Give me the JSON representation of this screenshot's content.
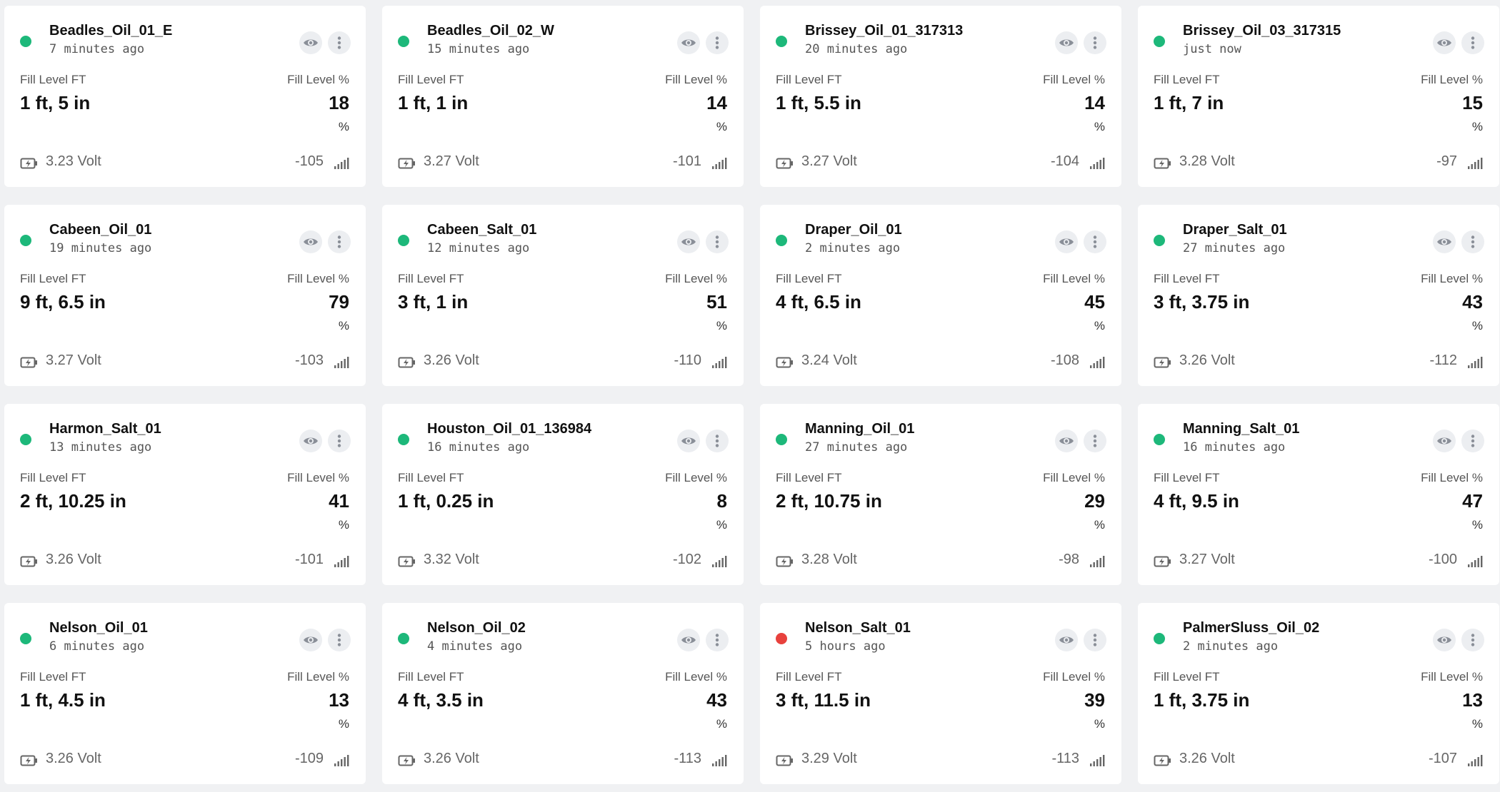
{
  "labels": {
    "fill_ft": "Fill Level FT",
    "fill_pct": "Fill Level %",
    "pct_sign": "%"
  },
  "colors": {
    "online": "#1db87a",
    "offline": "#e8413d"
  },
  "tanks": [
    {
      "name": "Beadles_Oil_01_E",
      "updated": "7 minutes ago",
      "status": "online",
      "fill_ft": "1 ft, 5 in",
      "fill_pct": "18",
      "voltage": "3.23 Volt",
      "rssi": "-105"
    },
    {
      "name": "Beadles_Oil_02_W",
      "updated": "15 minutes ago",
      "status": "online",
      "fill_ft": "1 ft, 1 in",
      "fill_pct": "14",
      "voltage": "3.27 Volt",
      "rssi": "-101"
    },
    {
      "name": "Brissey_Oil_01_317313",
      "updated": "20 minutes ago",
      "status": "online",
      "fill_ft": "1 ft, 5.5 in",
      "fill_pct": "14",
      "voltage": "3.27 Volt",
      "rssi": "-104"
    },
    {
      "name": "Brissey_Oil_03_317315",
      "updated": "just now",
      "status": "online",
      "fill_ft": "1 ft, 7 in",
      "fill_pct": "15",
      "voltage": "3.28 Volt",
      "rssi": "-97"
    },
    {
      "name": "Cabeen_Oil_01",
      "updated": "19 minutes ago",
      "status": "online",
      "fill_ft": "9 ft, 6.5 in",
      "fill_pct": "79",
      "voltage": "3.27 Volt",
      "rssi": "-103"
    },
    {
      "name": "Cabeen_Salt_01",
      "updated": "12 minutes ago",
      "status": "online",
      "fill_ft": "3 ft, 1 in",
      "fill_pct": "51",
      "voltage": "3.26 Volt",
      "rssi": "-110"
    },
    {
      "name": "Draper_Oil_01",
      "updated": "2 minutes ago",
      "status": "online",
      "fill_ft": "4 ft, 6.5 in",
      "fill_pct": "45",
      "voltage": "3.24 Volt",
      "rssi": "-108"
    },
    {
      "name": "Draper_Salt_01",
      "updated": "27 minutes ago",
      "status": "online",
      "fill_ft": "3 ft, 3.75 in",
      "fill_pct": "43",
      "voltage": "3.26 Volt",
      "rssi": "-112"
    },
    {
      "name": "Harmon_Salt_01",
      "updated": "13 minutes ago",
      "status": "online",
      "fill_ft": "2 ft, 10.25 in",
      "fill_pct": "41",
      "voltage": "3.26 Volt",
      "rssi": "-101"
    },
    {
      "name": "Houston_Oil_01_136984",
      "updated": "16 minutes ago",
      "status": "online",
      "fill_ft": "1 ft, 0.25 in",
      "fill_pct": "8",
      "voltage": "3.32 Volt",
      "rssi": "-102"
    },
    {
      "name": "Manning_Oil_01",
      "updated": "27 minutes ago",
      "status": "online",
      "fill_ft": "2 ft, 10.75 in",
      "fill_pct": "29",
      "voltage": "3.28 Volt",
      "rssi": "-98"
    },
    {
      "name": "Manning_Salt_01",
      "updated": "16 minutes ago",
      "status": "online",
      "fill_ft": "4 ft, 9.5 in",
      "fill_pct": "47",
      "voltage": "3.27 Volt",
      "rssi": "-100"
    },
    {
      "name": "Nelson_Oil_01",
      "updated": "6 minutes ago",
      "status": "online",
      "fill_ft": "1 ft, 4.5 in",
      "fill_pct": "13",
      "voltage": "3.26 Volt",
      "rssi": "-109"
    },
    {
      "name": "Nelson_Oil_02",
      "updated": "4 minutes ago",
      "status": "online",
      "fill_ft": "4 ft, 3.5 in",
      "fill_pct": "43",
      "voltage": "3.26 Volt",
      "rssi": "-113"
    },
    {
      "name": "Nelson_Salt_01",
      "updated": "5 hours ago",
      "status": "offline",
      "fill_ft": "3 ft, 11.5 in",
      "fill_pct": "39",
      "voltage": "3.29 Volt",
      "rssi": "-113"
    },
    {
      "name": "PalmerSluss_Oil_02",
      "updated": "2 minutes ago",
      "status": "online",
      "fill_ft": "1 ft, 3.75 in",
      "fill_pct": "13",
      "voltage": "3.26 Volt",
      "rssi": "-107"
    }
  ]
}
